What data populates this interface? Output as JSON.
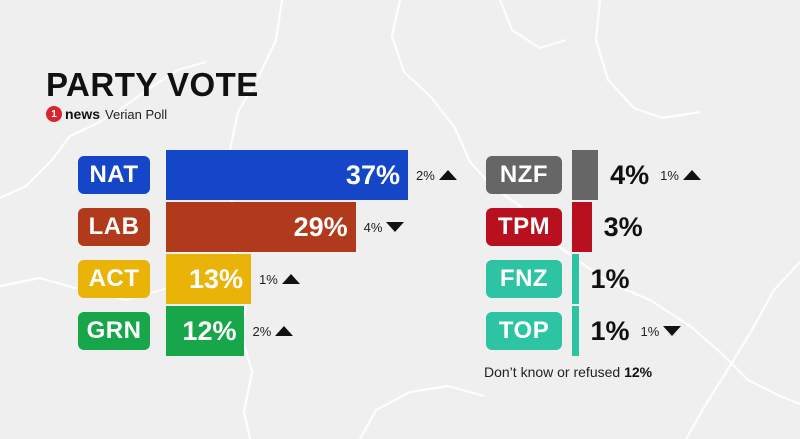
{
  "chart_data": {
    "type": "bar",
    "title": "PARTY VOTE",
    "subtitle": "Verian Poll",
    "brand": "news",
    "brand_mark": "1",
    "value_suffix": "%",
    "footnote": {
      "text": "Don’t know or refused",
      "value": "12%"
    },
    "parties": [
      {
        "code": "NAT",
        "value": 37,
        "change": "2%",
        "direction": "up",
        "color": "#1446c7"
      },
      {
        "code": "LAB",
        "value": 29,
        "change": "4%",
        "direction": "down",
        "color": "#b23a1c"
      },
      {
        "code": "ACT",
        "value": 13,
        "change": "1%",
        "direction": "up",
        "color": "#eab308"
      },
      {
        "code": "GRN",
        "value": 12,
        "change": "2%",
        "direction": "up",
        "color": "#17a64a"
      },
      {
        "code": "NZF",
        "value": 4,
        "change": "1%",
        "direction": "up",
        "color": "#666666"
      },
      {
        "code": "TPM",
        "value": 3,
        "change": "",
        "direction": "",
        "color": "#b8101f"
      },
      {
        "code": "FNZ",
        "value": 1,
        "change": "",
        "direction": "",
        "color": "#2dc4a4"
      },
      {
        "code": "TOP",
        "value": 1,
        "change": "1%",
        "direction": "down",
        "color": "#2dc4a4"
      }
    ]
  }
}
